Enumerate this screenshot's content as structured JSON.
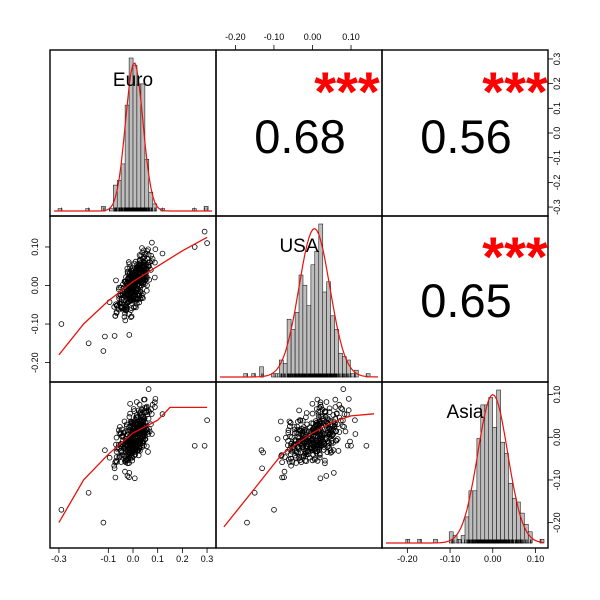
{
  "chart_data": {
    "type": "scatter-matrix",
    "title": "",
    "variables": [
      "Euro",
      "USA",
      "Asia"
    ],
    "colors": {
      "frame": "#000000",
      "fit": "#e8120c",
      "stars": "#ff0000",
      "bars": "#bdbdbd",
      "points": "#000000"
    },
    "ranges": {
      "Euro": [
        -0.32,
        0.32
      ],
      "USA": [
        -0.24,
        0.17
      ],
      "Asia": [
        -0.25,
        0.12
      ]
    },
    "top_axis": {
      "ticks": [
        -0.2,
        -0.1,
        0.0,
        0.1
      ],
      "labels": [
        "-0.20",
        "-0.10",
        "0.00",
        "0.10"
      ]
    },
    "right_axis_top": {
      "ticks": [
        -0.3,
        -0.2,
        -0.1,
        0.0,
        0.1,
        0.2,
        0.3
      ],
      "labels": [
        "-0.3",
        "-0.2",
        "-0.1",
        "0.0",
        "0.1",
        "0.2",
        "0.3"
      ]
    },
    "right_axis_bottom": {
      "ticks": [
        -0.2,
        -0.1,
        0.0,
        0.1
      ],
      "labels": [
        "-0.20",
        "-0.10",
        "0.00",
        "0.10"
      ]
    },
    "left_axis": {
      "ticks": [
        -0.2,
        -0.1,
        0.0,
        0.1
      ],
      "labels": [
        "-0.20",
        "-0.10",
        "0.00",
        "0.10"
      ]
    },
    "bottom_axis_left": {
      "ticks": [
        -0.3,
        -0.1,
        0.0,
        0.1,
        0.2,
        0.3
      ],
      "labels": [
        "-0.3",
        "-0.1",
        "0.0",
        "0.1",
        "0.2",
        "0.3"
      ]
    },
    "bottom_axis_right": {
      "ticks": [
        -0.2,
        -0.1,
        0.0,
        0.1
      ],
      "labels": [
        "-0.20",
        "-0.10",
        "0.00",
        "0.10"
      ]
    },
    "correlations": [
      {
        "pair": [
          "Euro",
          "USA"
        ],
        "value": "0.68",
        "stars": "***"
      },
      {
        "pair": [
          "Euro",
          "Asia"
        ],
        "value": "0.56",
        "stars": "***"
      },
      {
        "pair": [
          "USA",
          "Asia"
        ],
        "value": "0.65",
        "stars": "***"
      }
    ],
    "histograms": {
      "Euro": {
        "mean": 0.005,
        "sd": 0.035
      },
      "USA": {
        "mean": 0.005,
        "sd": 0.04
      },
      "Asia": {
        "mean": 0.0,
        "sd": 0.035
      }
    },
    "scatter_points_per_panel": 360,
    "smooth_fits": {
      "USA_vs_Euro": [
        [
          -0.3,
          -0.18
        ],
        [
          -0.2,
          -0.1
        ],
        [
          -0.1,
          -0.04
        ],
        [
          0.0,
          0.01
        ],
        [
          0.1,
          0.05
        ],
        [
          0.2,
          0.09
        ],
        [
          0.3,
          0.125
        ]
      ],
      "Asia_vs_Euro": [
        [
          -0.3,
          -0.2
        ],
        [
          -0.2,
          -0.1
        ],
        [
          -0.1,
          -0.04
        ],
        [
          0.0,
          0.01
        ],
        [
          0.1,
          0.04
        ],
        [
          0.15,
          0.07
        ],
        [
          0.3,
          0.07
        ]
      ],
      "Asia_vs_USA": [
        [
          -0.23,
          -0.21
        ],
        [
          -0.15,
          -0.12
        ],
        [
          -0.08,
          -0.04
        ],
        [
          0.0,
          0.01
        ],
        [
          0.05,
          0.035
        ],
        [
          0.1,
          0.05
        ],
        [
          0.16,
          0.055
        ]
      ]
    }
  }
}
